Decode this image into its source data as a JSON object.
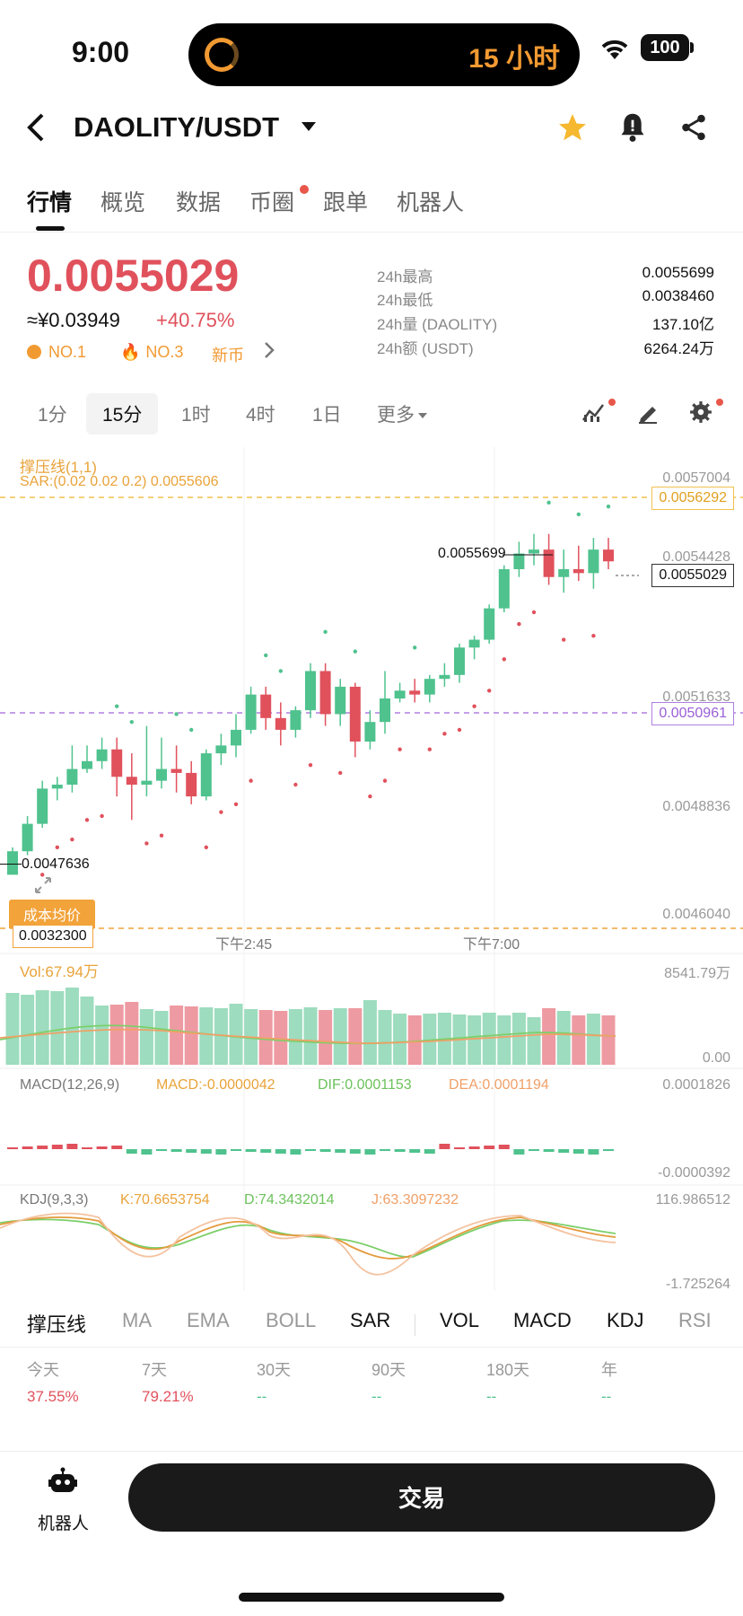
{
  "status_bar": {
    "time": "9:00",
    "island_text": "15 小时",
    "battery": "100"
  },
  "header": {
    "pair": "DAOLITY/USDT"
  },
  "tabs": [
    "行情",
    "概览",
    "数据",
    "币圈",
    "跟单",
    "机器人"
  ],
  "price": {
    "last": "0.0055029",
    "cny": "≈¥0.03949",
    "change": "+40.75%",
    "badges": [
      "NO.1",
      "NO.3",
      "新币"
    ],
    "stats": [
      {
        "label": "24h最高",
        "value": "0.0055699"
      },
      {
        "label": "24h最低",
        "value": "0.0038460"
      },
      {
        "label": "24h量 (DAOLITY)",
        "value": "137.10亿"
      },
      {
        "label": "24h额 (USDT)",
        "value": "6264.24万"
      }
    ]
  },
  "intervals": [
    "1分",
    "15分",
    "1时",
    "4时",
    "1日",
    "更多"
  ],
  "chart": {
    "overlay_title": "撑压线(1,1)",
    "sar_text": "SAR:(0.02 0.02 0.2) 0.0055606",
    "price_axis": [
      "0.0057004",
      "0.0054428",
      "0.0051633",
      "0.0048836",
      "0.0046040"
    ],
    "tag_resistance": "0.0056292",
    "tag_last": "0.0055029",
    "tag_support": "0.0050961",
    "high_label": "0.0055699",
    "low_label": "0.0047636",
    "cost_label": "成本均价",
    "cost_value": "0.0032300",
    "time_labels": [
      "下午2:45",
      "下午7:00"
    ],
    "vol_title": "Vol:67.94万",
    "vol_max": "8541.79万",
    "vol_min": "0.00",
    "macd_title": "MACD(12,26,9)",
    "macd_val": "MACD:-0.0000042",
    "dif_val": "DIF:0.0001153",
    "dea_val": "DEA:0.0001194",
    "macd_max": "0.0001826",
    "macd_min": "-0.0000392",
    "kdj_title": "KDJ(9,3,3)",
    "k_val": "K:70.6653754",
    "d_val": "D:74.3432014",
    "j_val": "J:63.3097232",
    "kdj_max": "116.986512",
    "kdj_min": "-1.725264",
    "colors": {
      "up": "#4fc28e",
      "down": "#e0515c",
      "sar": "#e0515c"
    }
  },
  "chart_data": {
    "type": "candlestick",
    "candles": [
      [
        "0.00470",
        "0.00476",
        "0.00475",
        "0.00477"
      ],
      [
        "0.00476",
        "0.00483",
        "0.00475",
        "0.00485"
      ],
      [
        "0.00483",
        "0.00492",
        "0.00482",
        "0.00494"
      ],
      [
        "0.00492",
        "0.00493",
        "0.00489",
        "0.00495"
      ],
      [
        "0.00493",
        "0.00497",
        "0.00491",
        "0.00503"
      ],
      [
        "0.00497",
        "0.00499",
        "0.00496",
        "0.00503"
      ],
      [
        "0.00499",
        "0.00502",
        "0.00497",
        "0.00505"
      ],
      [
        "0.00502",
        "0.00495",
        "0.00490",
        "0.00505"
      ],
      [
        "0.00495",
        "0.00493",
        "0.00484",
        "0.00501"
      ],
      [
        "0.00493",
        "0.00494",
        "0.00490",
        "0.00508"
      ],
      [
        "0.00494",
        "0.00497",
        "0.00492",
        "0.00505"
      ],
      [
        "0.00497",
        "0.00496",
        "0.00491",
        "0.00503"
      ],
      [
        "0.00496",
        "0.00490",
        "0.00488",
        "0.00499"
      ],
      [
        "0.00490",
        "0.00501",
        "0.00489",
        "0.00502"
      ],
      [
        "0.00501",
        "0.00503",
        "0.00498",
        "0.00506"
      ],
      [
        "0.00503",
        "0.00507",
        "0.00500",
        "0.00511"
      ],
      [
        "0.00507",
        "0.00516",
        "0.00506",
        "0.00518"
      ],
      [
        "0.00516",
        "0.00510",
        "0.00507",
        "0.00518"
      ],
      [
        "0.00510",
        "0.00507",
        "0.00503",
        "0.00514"
      ],
      [
        "0.00507",
        "0.00512",
        "0.00505",
        "0.00513"
      ],
      [
        "0.00512",
        "0.00522",
        "0.00510",
        "0.00524"
      ],
      [
        "0.00522",
        "0.00511",
        "0.00508",
        "0.00524"
      ],
      [
        "0.00511",
        "0.00518",
        "0.00508",
        "0.00520"
      ],
      [
        "0.00518",
        "0.00504",
        "0.00500",
        "0.00519"
      ],
      [
        "0.00504",
        "0.00509",
        "0.00502",
        "0.00512"
      ],
      [
        "0.00509",
        "0.00515",
        "0.00506",
        "0.00522"
      ],
      [
        "0.00515",
        "0.00517",
        "0.00514",
        "0.00519"
      ],
      [
        "0.00517",
        "0.00516",
        "0.00514",
        "0.00520"
      ],
      [
        "0.00516",
        "0.00520",
        "0.00514",
        "0.00521"
      ],
      [
        "0.00520",
        "0.00521",
        "0.00518",
        "0.00524"
      ],
      [
        "0.00521",
        "0.00528",
        "0.00519",
        "0.00529"
      ],
      [
        "0.00528",
        "0.00530",
        "0.00525",
        "0.00531"
      ],
      [
        "0.00530",
        "0.00538",
        "0.00529",
        "0.00539"
      ],
      [
        "0.00538",
        "0.00548",
        "0.00537",
        "0.00549"
      ],
      [
        "0.00548",
        "0.00552",
        "0.00546",
        "0.00555"
      ],
      [
        "0.00552",
        "0.00553",
        "0.00549",
        "0.00557"
      ],
      [
        "0.00553",
        "0.00546",
        "0.00544",
        "0.00557"
      ],
      [
        "0.00546",
        "0.00548",
        "0.00542",
        "0.00553"
      ],
      [
        "0.00548",
        "0.00547",
        "0.00545",
        "0.00554"
      ],
      [
        "0.00547",
        "0.00553",
        "0.00543",
        "0.00556"
      ],
      [
        "0.00553",
        "0.00550",
        "0.00548",
        "0.00556"
      ]
    ],
    "candle_fields": [
      "open",
      "close",
      "low",
      "high"
    ],
    "ylim": [
      0.0046,
      0.0057
    ],
    "volume": [
      80,
      78,
      83,
      82,
      86,
      76,
      66,
      67,
      70,
      62,
      60,
      66,
      65,
      64,
      63,
      68,
      62,
      61,
      60,
      62,
      64,
      61,
      63,
      63,
      72,
      61,
      57,
      55,
      57,
      58,
      56,
      55,
      58,
      55,
      58,
      53,
      63,
      60,
      55,
      57,
      55
    ],
    "volume_max": 100
  },
  "indicators": [
    "撑压线",
    "MA",
    "EMA",
    "BOLL",
    "SAR",
    "VOL",
    "MACD",
    "KDJ",
    "RSI"
  ],
  "performance": [
    {
      "label": "今天",
      "value": "37.55%"
    },
    {
      "label": "7天",
      "value": "79.21%"
    },
    {
      "label": "30天",
      "value": "--"
    },
    {
      "label": "90天",
      "value": "--"
    },
    {
      "label": "180天",
      "value": "--"
    },
    {
      "label": "年",
      "value": "--"
    }
  ],
  "bottom": {
    "robot_label": "机器人",
    "trade_label": "交易"
  }
}
